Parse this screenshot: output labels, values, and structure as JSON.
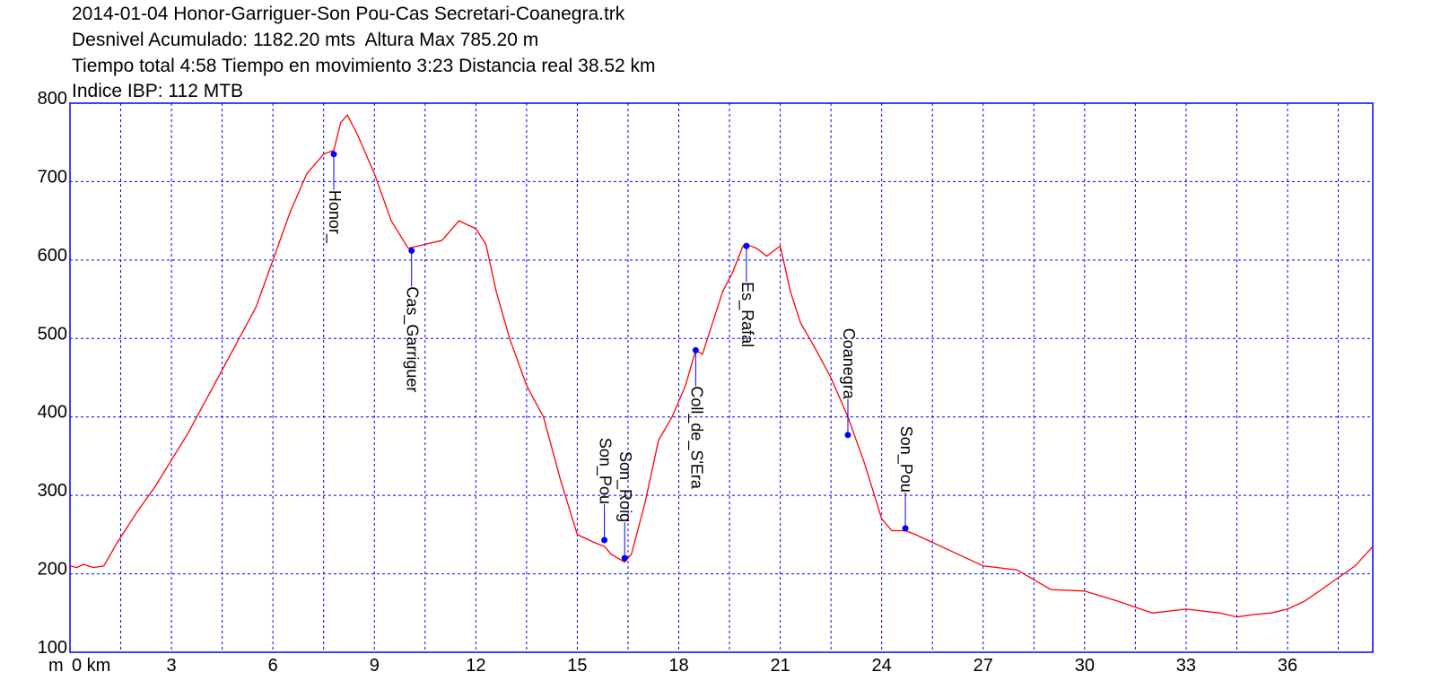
{
  "chart_data": {
    "type": "line",
    "title_lines": [
      "2014-01-04 Honor-Garriguer-Son Pou-Cas Secretari-Coanegra.trk",
      "Desnivel Acumulado: 1182.20 mts  Altura Max 785.20 m",
      "Tiempo total 4:58 Tiempo en movimiento 3:23 Distancia real 38.52 km",
      "Indice IBP: 112 MTB"
    ],
    "xunit_prefix": "m",
    "xunit": "0 km",
    "xlim": [
      0,
      38.52
    ],
    "ylim": [
      100,
      800
    ],
    "yticks": [
      100,
      200,
      300,
      400,
      500,
      600,
      700,
      800
    ],
    "xticks": [
      3,
      6,
      9,
      12,
      15,
      18,
      21,
      24,
      27,
      30,
      33,
      36
    ],
    "grid": true,
    "grid_x_step_km": 1.5,
    "grid_y_step_m": 100,
    "colors": {
      "line": "#ff0000",
      "grid": "#0000ff",
      "frame": "#0000ff",
      "waypoint": "#0000ff"
    },
    "series": [
      {
        "x": [
          0,
          0.2,
          0.4,
          0.7,
          1.0,
          1.4,
          2.0,
          2.5,
          3.0,
          3.5,
          4.0,
          4.5,
          5.0,
          5.5,
          6.0,
          6.5,
          7.0,
          7.5,
          7.8,
          8.0,
          8.2,
          8.5,
          9.0,
          9.5,
          10.0,
          10.5,
          11.0,
          11.5,
          12.0,
          12.3,
          12.6,
          13.0,
          13.5,
          14.0,
          14.5,
          15.0,
          15.5,
          15.8,
          16.0,
          16.4,
          16.6,
          17.0,
          17.4,
          17.8,
          18.2,
          18.5,
          18.7,
          19.0,
          19.3,
          19.6,
          19.9,
          20.0,
          20.3,
          20.6,
          21.0,
          21.3,
          21.6,
          22.0,
          22.5,
          23.0,
          23.5,
          24.0,
          24.3,
          24.7,
          25.0,
          26.0,
          27.0,
          28.0,
          29.0,
          30.0,
          31.0,
          32.0,
          33.0,
          34.0,
          34.5,
          35.0,
          35.5,
          36.0,
          36.5,
          37.0,
          37.5,
          38.0,
          38.52
        ],
        "y": [
          210,
          208,
          212,
          208,
          210,
          240,
          280,
          310,
          345,
          380,
          420,
          460,
          500,
          540,
          600,
          660,
          710,
          735,
          740,
          775,
          785,
          760,
          710,
          650,
          615,
          620,
          625,
          650,
          640,
          620,
          560,
          500,
          440,
          400,
          320,
          250,
          240,
          235,
          225,
          215,
          225,
          290,
          370,
          400,
          440,
          485,
          480,
          520,
          560,
          585,
          618,
          620,
          615,
          605,
          618,
          560,
          520,
          490,
          450,
          400,
          340,
          270,
          255,
          255,
          250,
          230,
          210,
          205,
          180,
          178,
          165,
          150,
          155,
          150,
          145,
          148,
          150,
          155,
          165,
          180,
          195,
          210,
          235
        ]
      }
    ],
    "waypoints": [
      {
        "name": "Honor_",
        "x": 7.8,
        "y": 735,
        "side": "below"
      },
      {
        "name": "Cas_Garriguer",
        "x": 10.1,
        "y": 612,
        "side": "below"
      },
      {
        "name": "Son_Pou",
        "x": 15.8,
        "y": 243,
        "side": "above"
      },
      {
        "name": "Son_Roig",
        "x": 16.4,
        "y": 220,
        "side": "above"
      },
      {
        "name": "Coll_de_S'Era",
        "x": 18.5,
        "y": 485,
        "side": "below"
      },
      {
        "name": "Es_Rafal",
        "x": 20.0,
        "y": 618,
        "side": "below"
      },
      {
        "name": "Coanegra",
        "x": 23.0,
        "y": 377,
        "side": "above"
      },
      {
        "name": "Son_Pou",
        "x": 24.7,
        "y": 258,
        "side": "above"
      }
    ]
  }
}
